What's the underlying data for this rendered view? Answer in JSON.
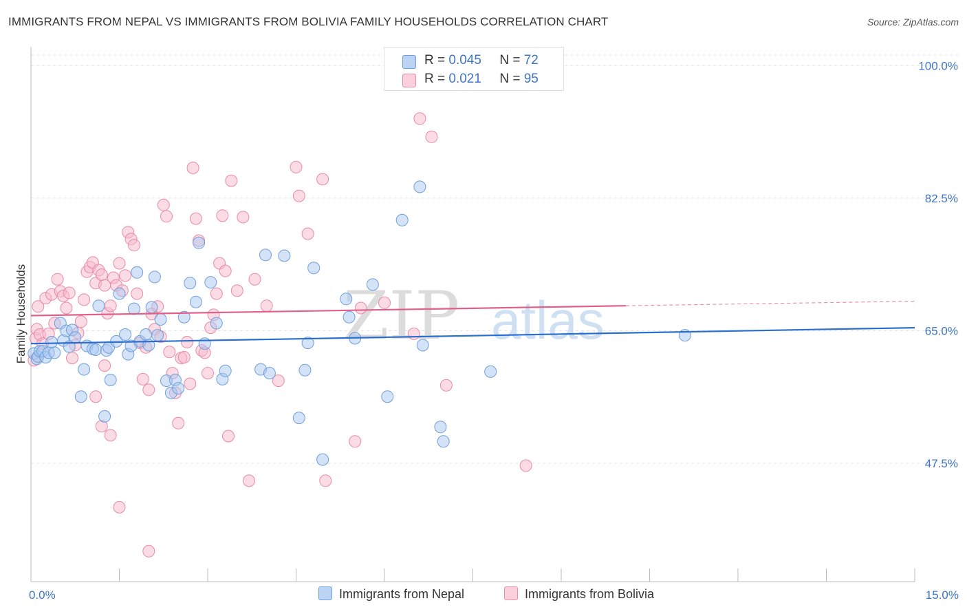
{
  "title": "IMMIGRANTS FROM NEPAL VS IMMIGRANTS FROM BOLIVIA FAMILY HOUSEHOLDS CORRELATION CHART",
  "source": "Source: ZipAtlas.com",
  "watermark": {
    "zip": "ZIP",
    "atlas": "atlas"
  },
  "legend": {
    "r_label": "R =",
    "n_label": "N =",
    "nepal": {
      "r": "0.045",
      "n": "72"
    },
    "bolivia": {
      "r": "0.021",
      "n": "95"
    }
  },
  "colors": {
    "nepal_fill": "#a9c8f0",
    "nepal_stroke": "#6d9fdc",
    "nepal_line": "#2a6fcf",
    "bolivia_fill": "#f7b9cc",
    "bolivia_stroke": "#e98aa8",
    "bolivia_line": "#e0608a",
    "tick_label": "#3d74c5"
  },
  "chart_data": {
    "type": "scatter",
    "title": "IMMIGRANTS FROM NEPAL VS IMMIGRANTS FROM BOLIVIA FAMILY HOUSEHOLDS CORRELATION CHART",
    "xlabel": "",
    "ylabel": "Family Households",
    "xlim": [
      0,
      15
    ],
    "ylim": [
      31,
      102
    ],
    "x_tick_labels": [
      "0.0%",
      "15.0%"
    ],
    "y_ticks": [
      100,
      82.5,
      65,
      47.5
    ],
    "y_tick_labels": [
      "100.0%",
      "82.5%",
      "65.0%",
      "47.5%"
    ],
    "grid": "horizontal dashed",
    "legend_position": "top-center",
    "series": [
      {
        "name": "Immigrants from Nepal",
        "r": 0.045,
        "n": 72,
        "trend": {
          "x0": 0,
          "y0": 63.3,
          "x1": 15,
          "y1": 65.4
        },
        "points": [
          [
            0.05,
            62.0
          ],
          [
            0.1,
            61.3
          ],
          [
            0.12,
            61.6
          ],
          [
            0.15,
            62.3
          ],
          [
            0.2,
            62.3
          ],
          [
            0.25,
            61.5
          ],
          [
            0.3,
            62.1
          ],
          [
            0.35,
            63.5
          ],
          [
            0.4,
            62.1
          ],
          [
            0.5,
            66.0
          ],
          [
            0.55,
            63.7
          ],
          [
            0.6,
            65.0
          ],
          [
            0.65,
            62.9
          ],
          [
            0.7,
            65.1
          ],
          [
            0.75,
            64.1
          ],
          [
            0.85,
            56.3
          ],
          [
            0.9,
            59.9
          ],
          [
            0.95,
            63.0
          ],
          [
            1.05,
            62.6
          ],
          [
            1.1,
            62.5
          ],
          [
            1.15,
            68.3
          ],
          [
            1.25,
            53.7
          ],
          [
            1.28,
            62.4
          ],
          [
            1.32,
            62.8
          ],
          [
            1.35,
            58.5
          ],
          [
            1.45,
            63.6
          ],
          [
            1.5,
            69.9
          ],
          [
            1.6,
            64.5
          ],
          [
            1.65,
            61.9
          ],
          [
            1.7,
            63.0
          ],
          [
            1.75,
            67.9
          ],
          [
            1.8,
            72.7
          ],
          [
            1.85,
            63.6
          ],
          [
            1.95,
            64.5
          ],
          [
            2.0,
            63.1
          ],
          [
            2.05,
            68.1
          ],
          [
            2.1,
            72.1
          ],
          [
            2.15,
            64.4
          ],
          [
            2.2,
            66.5
          ],
          [
            2.3,
            58.4
          ],
          [
            2.38,
            56.8
          ],
          [
            2.45,
            58.5
          ],
          [
            2.5,
            57.4
          ],
          [
            2.6,
            66.8
          ],
          [
            2.7,
            71.3
          ],
          [
            2.8,
            68.8
          ],
          [
            2.85,
            76.6
          ],
          [
            2.95,
            63.3
          ],
          [
            3.05,
            71.4
          ],
          [
            3.15,
            66.0
          ],
          [
            3.25,
            58.6
          ],
          [
            3.3,
            59.7
          ],
          [
            3.9,
            59.9
          ],
          [
            3.98,
            75.0
          ],
          [
            4.05,
            59.4
          ],
          [
            4.3,
            74.9
          ],
          [
            4.55,
            53.5
          ],
          [
            4.65,
            59.8
          ],
          [
            4.7,
            63.4
          ],
          [
            4.8,
            73.3
          ],
          [
            4.95,
            48.0
          ],
          [
            5.35,
            69.2
          ],
          [
            5.4,
            66.8
          ],
          [
            5.5,
            64.0
          ],
          [
            5.8,
            71.1
          ],
          [
            6.05,
            56.3
          ],
          [
            6.3,
            79.6
          ],
          [
            6.6,
            84.0
          ],
          [
            6.65,
            63.1
          ],
          [
            6.95,
            52.3
          ],
          [
            7.0,
            50.4
          ],
          [
            7.8,
            59.6
          ],
          [
            11.1,
            64.4
          ]
        ]
      },
      {
        "name": "Immigrants from Bolivia",
        "r": 0.021,
        "n": 95,
        "trend": {
          "x0": 0,
          "y0": 67.0,
          "x1": 10.1,
          "y1": 68.3,
          "dash_to_x": 15,
          "dash_to_y": 68.9
        },
        "points": [
          [
            0.05,
            61.1
          ],
          [
            0.08,
            64.0
          ],
          [
            0.1,
            65.2
          ],
          [
            0.12,
            68.2
          ],
          [
            0.15,
            64.5
          ],
          [
            0.2,
            63.3
          ],
          [
            0.25,
            69.3
          ],
          [
            0.3,
            64.6
          ],
          [
            0.35,
            69.8
          ],
          [
            0.4,
            66.0
          ],
          [
            0.45,
            71.8
          ],
          [
            0.5,
            70.2
          ],
          [
            0.55,
            69.6
          ],
          [
            0.6,
            68.0
          ],
          [
            0.65,
            70.0
          ],
          [
            0.7,
            61.4
          ],
          [
            0.75,
            63.1
          ],
          [
            0.8,
            64.7
          ],
          [
            0.85,
            66.2
          ],
          [
            0.9,
            69.1
          ],
          [
            0.95,
            72.8
          ],
          [
            1.0,
            73.4
          ],
          [
            1.05,
            74.0
          ],
          [
            1.1,
            71.3
          ],
          [
            1.15,
            73.0
          ],
          [
            1.2,
            72.4
          ],
          [
            1.25,
            71.0
          ],
          [
            1.3,
            67.3
          ],
          [
            1.35,
            68.3
          ],
          [
            1.4,
            72.0
          ],
          [
            1.45,
            71.0
          ],
          [
            1.5,
            73.9
          ],
          [
            1.55,
            70.3
          ],
          [
            1.6,
            72.3
          ],
          [
            1.65,
            78.0
          ],
          [
            1.7,
            77.1
          ],
          [
            1.75,
            76.3
          ],
          [
            1.8,
            69.9
          ],
          [
            1.85,
            63.4
          ],
          [
            1.9,
            58.6
          ],
          [
            1.95,
            62.8
          ],
          [
            2.0,
            57.2
          ],
          [
            2.05,
            67.2
          ],
          [
            2.1,
            65.2
          ],
          [
            2.15,
            68.2
          ],
          [
            2.2,
            64.2
          ],
          [
            2.25,
            81.6
          ],
          [
            2.3,
            80.1
          ],
          [
            2.35,
            62.2
          ],
          [
            2.4,
            59.4
          ],
          [
            2.45,
            56.8
          ],
          [
            2.5,
            52.8
          ],
          [
            2.55,
            61.4
          ],
          [
            2.6,
            61.5
          ],
          [
            2.65,
            63.5
          ],
          [
            2.7,
            58.0
          ],
          [
            2.75,
            86.5
          ],
          [
            2.8,
            79.8
          ],
          [
            2.85,
            76.9
          ],
          [
            2.9,
            62.4
          ],
          [
            2.95,
            62.1
          ],
          [
            3.0,
            59.4
          ],
          [
            3.05,
            65.4
          ],
          [
            3.1,
            67.1
          ],
          [
            3.15,
            69.9
          ],
          [
            3.2,
            73.9
          ],
          [
            3.25,
            80.2
          ],
          [
            3.3,
            72.9
          ],
          [
            3.35,
            51.1
          ],
          [
            3.4,
            84.8
          ],
          [
            3.5,
            70.3
          ],
          [
            3.6,
            80.0
          ],
          [
            3.7,
            45.2
          ],
          [
            3.8,
            71.8
          ],
          [
            4.0,
            68.3
          ],
          [
            4.2,
            58.4
          ],
          [
            4.5,
            86.6
          ],
          [
            4.55,
            82.8
          ],
          [
            4.7,
            77.8
          ],
          [
            4.95,
            85.0
          ],
          [
            5.0,
            45.2
          ],
          [
            5.5,
            50.4
          ],
          [
            5.6,
            68.0
          ],
          [
            6.0,
            68.7
          ],
          [
            6.5,
            64.6
          ],
          [
            6.6,
            93.0
          ],
          [
            6.8,
            90.6
          ],
          [
            7.05,
            57.8
          ],
          [
            8.4,
            47.2
          ],
          [
            1.2,
            52.4
          ],
          [
            1.35,
            51.2
          ],
          [
            1.1,
            56.3
          ],
          [
            1.25,
            60.4
          ],
          [
            1.5,
            41.7
          ],
          [
            2.0,
            35.9
          ]
        ]
      }
    ]
  },
  "bottom_legend": {
    "nepal": "Immigrants from Nepal",
    "bolivia": "Immigrants from Bolivia"
  }
}
